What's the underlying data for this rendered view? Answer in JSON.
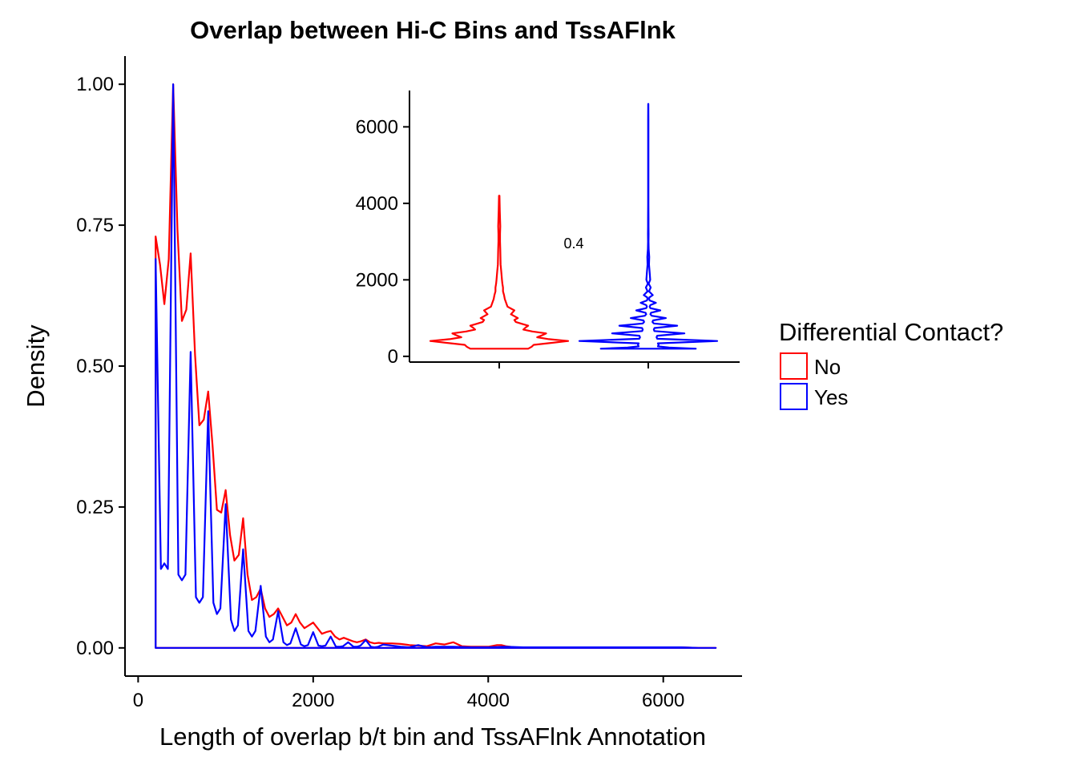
{
  "chart_data": [
    {
      "type": "line",
      "title": "Overlap between Hi-C Bins and TssAFlnk",
      "xlabel": "Length of overlap b/t bin and TssAFlnk Annotation",
      "ylabel": "Density",
      "xlim": [
        -150,
        6900
      ],
      "ylim": [
        -0.05,
        1.05
      ],
      "xticks": [
        0,
        2000,
        4000,
        6000
      ],
      "xtick_labels": [
        "0",
        "2000",
        "4000",
        "6000"
      ],
      "yticks": [
        0,
        0.25,
        0.5,
        0.75,
        1
      ],
      "ytick_labels": [
        "0.00",
        "0.25",
        "0.50",
        "0.75",
        "1.00"
      ],
      "grid": false,
      "series": [
        {
          "name": "No",
          "color": "#ff0000",
          "x": [
            200,
            250,
            300,
            350,
            400,
            450,
            500,
            550,
            600,
            650,
            700,
            750,
            800,
            850,
            900,
            950,
            1000,
            1050,
            1100,
            1150,
            1200,
            1250,
            1300,
            1350,
            1400,
            1450,
            1500,
            1550,
            1600,
            1650,
            1700,
            1750,
            1800,
            1850,
            1900,
            1950,
            2000,
            2050,
            2100,
            2150,
            2200,
            2250,
            2300,
            2350,
            2400,
            2450,
            2500,
            2550,
            2600,
            2650,
            2700,
            2750,
            2800,
            2900,
            3000,
            3100,
            3200,
            3300,
            3400,
            3500,
            3600,
            3700,
            3800,
            3900,
            4000,
            4100,
            4150,
            4200,
            4300,
            4400,
            4600,
            4800,
            5000,
            5200,
            5400,
            5600,
            5800,
            6000,
            6200,
            6400,
            6600
          ],
          "y": [
            0.73,
            0.68,
            0.61,
            0.69,
            1.0,
            0.74,
            0.58,
            0.6,
            0.7,
            0.52,
            0.395,
            0.405,
            0.455,
            0.36,
            0.245,
            0.24,
            0.28,
            0.2,
            0.155,
            0.165,
            0.23,
            0.13,
            0.085,
            0.09,
            0.105,
            0.07,
            0.055,
            0.06,
            0.07,
            0.055,
            0.04,
            0.045,
            0.06,
            0.045,
            0.035,
            0.04,
            0.045,
            0.035,
            0.025,
            0.028,
            0.03,
            0.02,
            0.015,
            0.018,
            0.015,
            0.012,
            0.01,
            0.012,
            0.015,
            0.01,
            0.008,
            0.009,
            0.008,
            0.008,
            0.007,
            0.005,
            0.004,
            0.003,
            0.008,
            0.006,
            0.01,
            0.003,
            0.002,
            0.002,
            0.002,
            0.005,
            0.005,
            0.003,
            0.001,
            0.001,
            0.001,
            0.001,
            0.001,
            0.001,
            0.001,
            0.001,
            0.001,
            0.001,
            0.001,
            0.0,
            0.0
          ]
        },
        {
          "name": "Yes",
          "color": "#0000ff",
          "x": [
            200,
            200,
            260,
            300,
            340,
            400,
            460,
            500,
            540,
            600,
            660,
            700,
            740,
            800,
            860,
            900,
            940,
            1000,
            1060,
            1100,
            1140,
            1200,
            1260,
            1300,
            1340,
            1400,
            1460,
            1500,
            1540,
            1600,
            1660,
            1700,
            1740,
            1800,
            1860,
            1900,
            1940,
            2000,
            2060,
            2100,
            2140,
            2200,
            2260,
            2300,
            2340,
            2400,
            2460,
            2500,
            2540,
            2600,
            2660,
            2700,
            2740,
            2800,
            2900,
            3000,
            3100,
            3200,
            3300,
            3400,
            3600,
            3800,
            4000,
            4200,
            4400,
            4600,
            4800,
            5000,
            5200,
            5400,
            5600,
            5800,
            6000,
            6200,
            6400,
            6600
          ],
          "y": [
            0.0,
            0.69,
            0.14,
            0.15,
            0.14,
            1.0,
            0.13,
            0.12,
            0.13,
            0.525,
            0.09,
            0.08,
            0.09,
            0.42,
            0.08,
            0.06,
            0.07,
            0.255,
            0.05,
            0.03,
            0.04,
            0.175,
            0.03,
            0.02,
            0.03,
            0.11,
            0.02,
            0.01,
            0.015,
            0.065,
            0.01,
            0.005,
            0.008,
            0.035,
            0.006,
            0.003,
            0.005,
            0.028,
            0.004,
            0.003,
            0.004,
            0.02,
            0.002,
            0.002,
            0.003,
            0.01,
            0.002,
            0.002,
            0.004,
            0.014,
            0.002,
            0.001,
            0.002,
            0.006,
            0.004,
            0.002,
            0.001,
            0.005,
            0.001,
            0.002,
            0.002,
            0.001,
            0.001,
            0.002,
            0.001,
            0.001,
            0.001,
            0.001,
            0.001,
            0.001,
            0.001,
            0.001,
            0.001,
            0.001,
            0.0,
            0.0
          ]
        }
      ],
      "legend": {
        "title": "Differential Contact?",
        "position": "right",
        "entries": [
          {
            "label": "No",
            "color": "#ff0000"
          },
          {
            "label": "Yes",
            "color": "#0000ff"
          }
        ]
      }
    },
    {
      "type": "violin",
      "inset": true,
      "yticks": [
        0,
        2000,
        4000,
        6000
      ],
      "ytick_labels": [
        "0",
        "2000",
        "4000",
        "6000"
      ],
      "ylim": [
        -150,
        6950
      ],
      "groups": [
        "No",
        "Yes"
      ],
      "annotation": "0.4",
      "series": [
        {
          "name": "No",
          "color": "#ff0000",
          "y": [
            200,
            250,
            300,
            350,
            400,
            450,
            500,
            550,
            600,
            650,
            700,
            750,
            800,
            850,
            900,
            950,
            1000,
            1100,
            1200,
            1300,
            1400,
            1500,
            1600,
            1700,
            1800,
            1900,
            2000,
            2200,
            2400,
            2600,
            2800,
            3000,
            3200,
            3400,
            3600,
            3800,
            4000,
            4200
          ],
          "width": [
            0.42,
            0.47,
            0.5,
            0.75,
            1.0,
            0.72,
            0.55,
            0.62,
            0.68,
            0.48,
            0.35,
            0.38,
            0.42,
            0.33,
            0.24,
            0.22,
            0.27,
            0.17,
            0.22,
            0.12,
            0.1,
            0.08,
            0.07,
            0.055,
            0.055,
            0.045,
            0.04,
            0.03,
            0.02,
            0.018,
            0.015,
            0.012,
            0.012,
            0.015,
            0.012,
            0.008,
            0.006,
            0.004
          ]
        },
        {
          "name": "Yes",
          "color": "#0000ff",
          "y": [
            200,
            230,
            260,
            300,
            340,
            400,
            460,
            500,
            540,
            600,
            660,
            700,
            740,
            800,
            860,
            900,
            940,
            1000,
            1060,
            1100,
            1140,
            1200,
            1260,
            1300,
            1340,
            1400,
            1460,
            1500,
            1540,
            1600,
            1700,
            1800,
            1900,
            2000,
            2200,
            2400,
            2600,
            2800,
            3000,
            3200,
            3400,
            3600,
            4000,
            4400,
            5000,
            5600,
            6200,
            6600
          ],
          "width": [
            0.69,
            0.3,
            0.14,
            0.15,
            0.14,
            1.0,
            0.13,
            0.12,
            0.13,
            0.525,
            0.09,
            0.08,
            0.09,
            0.42,
            0.08,
            0.06,
            0.07,
            0.255,
            0.05,
            0.03,
            0.04,
            0.175,
            0.03,
            0.02,
            0.03,
            0.11,
            0.02,
            0.012,
            0.015,
            0.065,
            0.01,
            0.035,
            0.006,
            0.028,
            0.02,
            0.01,
            0.014,
            0.006,
            0.004,
            0.005,
            0.003,
            0.003,
            0.002,
            0.002,
            0.002,
            0.002,
            0.002,
            0.001
          ]
        }
      ]
    }
  ]
}
